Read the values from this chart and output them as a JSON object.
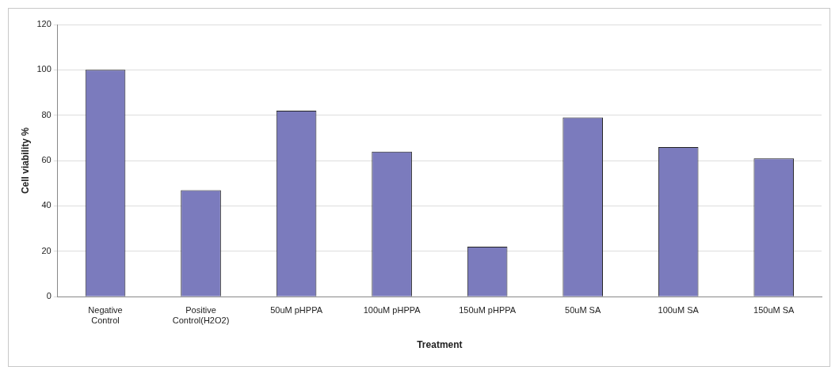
{
  "chart_data": {
    "type": "bar",
    "xlabel": "Treatment",
    "ylabel": "Cell viability %",
    "categories": [
      "Negative Control",
      "Positive Control(H2O2)",
      "50uM pHPPA",
      "100uM pHPPA",
      "150uM pHPPA",
      "50uM SA",
      "100uM SA",
      "150uM SA"
    ],
    "values": [
      100,
      47,
      82,
      64,
      22,
      79,
      66,
      61
    ],
    "color": "#7b7bbd",
    "ylim": [
      0,
      120
    ],
    "yticks": [
      0,
      20,
      40,
      60,
      80,
      100,
      120
    ],
    "grid": "y",
    "legend": false
  }
}
